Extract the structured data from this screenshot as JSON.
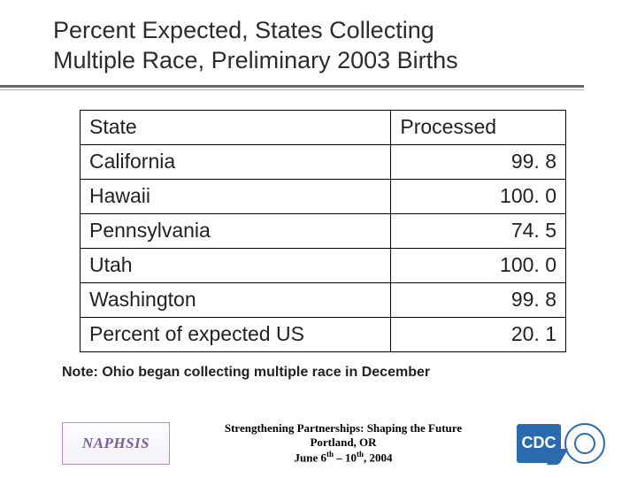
{
  "title_line1": "Percent Expected, States Collecting",
  "title_line2": "Multiple Race, Preliminary 2003 Births",
  "table": {
    "columns": [
      "State",
      "Processed"
    ],
    "rows": [
      [
        "California",
        "99. 8"
      ],
      [
        "Hawaii",
        "100. 0"
      ],
      [
        "Pennsylvania",
        "74. 5"
      ],
      [
        "Utah",
        "100. 0"
      ],
      [
        "Washington",
        "99. 8"
      ],
      [
        "Percent of expected US",
        "20. 1"
      ]
    ],
    "border_color": "#000000",
    "fontsize": 23,
    "col_state_align": "left",
    "col_proc_align": "right"
  },
  "note": "Note: Ohio began collecting multiple race in December",
  "footer": {
    "left_logo_text": "NAPHSIS",
    "center_line1": "Strengthening Partnerships: Shaping the Future",
    "center_line2": "Portland, OR",
    "center_line3_prefix": "June 6",
    "center_line3_mid": " – 10",
    "center_line3_suffix": ", 2004",
    "sup_th": "th",
    "right_logo_text": "CDC"
  },
  "colors": {
    "title": "#2c2c2c",
    "rule_top": "#666666",
    "rule_bottom": "#aaaaaa",
    "naphsis": "#7a5fa0",
    "cdc": "#2a6bb0",
    "background": "#ffffff"
  }
}
